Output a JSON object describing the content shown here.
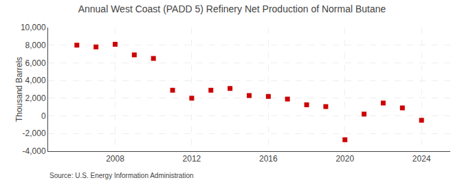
{
  "chart_data": {
    "type": "scatter",
    "title": "Annual West Coast (PADD 5) Refinery Net Production of Normal Butane",
    "ylabel": "Thousand Barrels",
    "annotations": [
      "Source: U.S. Energy Information Administration"
    ],
    "x": [
      2006,
      2007,
      2008,
      2009,
      2010,
      2011,
      2012,
      2013,
      2014,
      2015,
      2016,
      2017,
      2018,
      2019,
      2020,
      2021,
      2022,
      2023,
      2024
    ],
    "values": [
      8000,
      7800,
      8100,
      6900,
      6500,
      2900,
      2000,
      2900,
      3100,
      2300,
      2200,
      1900,
      1250,
      1050,
      -2700,
      200,
      1450,
      900,
      -500
    ],
    "color": "#cc0000",
    "marker": "square",
    "xlim": [
      2004.5,
      2025.5
    ],
    "xticks": [
      2008,
      2012,
      2016,
      2020,
      2024
    ],
    "ylim": [
      -4000,
      10000
    ],
    "yticks": [
      {
        "value": -4000,
        "label": "-4,000"
      },
      {
        "value": -2000,
        "label": "-2,000"
      },
      0,
      {
        "value": 2000,
        "label": "2,000"
      },
      {
        "value": 4000,
        "label": "4,000"
      },
      {
        "value": 6000,
        "label": "6,000"
      },
      {
        "value": 8000,
        "label": "8,000"
      },
      {
        "value": 10000,
        "label": "10,000"
      }
    ],
    "grid": true
  }
}
